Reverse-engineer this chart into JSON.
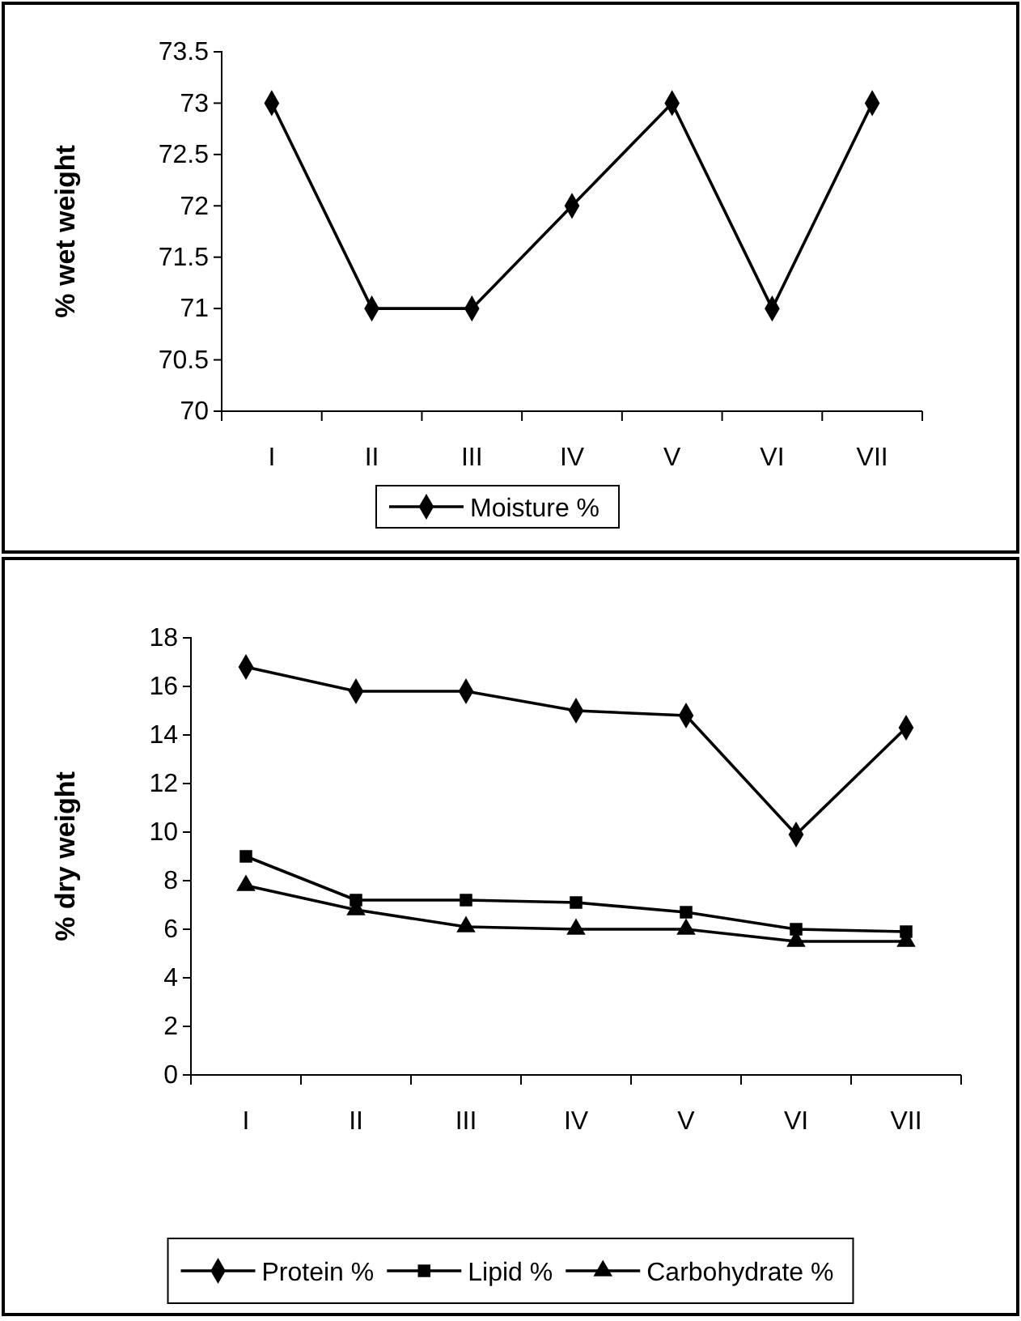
{
  "chart_data": [
    {
      "type": "line",
      "ylabel": "%  wet weight",
      "categories": [
        "I",
        "II",
        "III",
        "IV",
        "V",
        "VI",
        "VII"
      ],
      "series": [
        {
          "name": "Moisture %",
          "color": "#000000",
          "marker": "diamond",
          "values": [
            73,
            71,
            71,
            72,
            73,
            71,
            73
          ]
        }
      ],
      "ylim": [
        70,
        73.5
      ],
      "yticks": [
        70,
        70.5,
        71,
        71.5,
        72,
        72.5,
        73,
        73.5
      ],
      "grid": false,
      "legend": "bottom"
    },
    {
      "type": "line",
      "ylabel": "% dry weight",
      "categories": [
        "I",
        "II",
        "III",
        "IV",
        "V",
        "VI",
        "VII"
      ],
      "series": [
        {
          "name": "Protein %",
          "color": "#000000",
          "marker": "diamond",
          "values": [
            16.8,
            15.8,
            15.8,
            15.0,
            14.8,
            9.9,
            14.3
          ]
        },
        {
          "name": "Lipid %",
          "color": "#000000",
          "marker": "square",
          "values": [
            9.0,
            7.2,
            7.2,
            7.1,
            6.7,
            6.0,
            5.9
          ]
        },
        {
          "name": "Carbohydrate %",
          "color": "#000000",
          "marker": "triangle",
          "values": [
            7.8,
            6.8,
            6.1,
            6.0,
            6.0,
            5.5,
            5.5
          ]
        }
      ],
      "ylim": [
        0,
        18
      ],
      "yticks": [
        0,
        2,
        4,
        6,
        8,
        10,
        12,
        14,
        16,
        18
      ],
      "grid": false,
      "legend": "bottom"
    }
  ]
}
